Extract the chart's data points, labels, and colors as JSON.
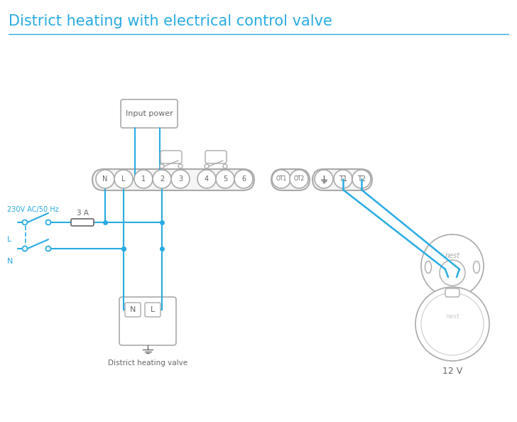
{
  "title": "District heating with electrical control valve",
  "title_color": "#29abe2",
  "title_fontsize": 15,
  "bg_color": "#ffffff",
  "lc": "#29abe2",
  "gc": "#aaaaaa",
  "dc": "#666666",
  "label_230v": "230V AC/50 Hz",
  "label_L": "L",
  "label_N": "N",
  "label_3A": "3 A",
  "label_input_power": "Input power",
  "label_district": "District heating valve",
  "label_12v": "12 V"
}
